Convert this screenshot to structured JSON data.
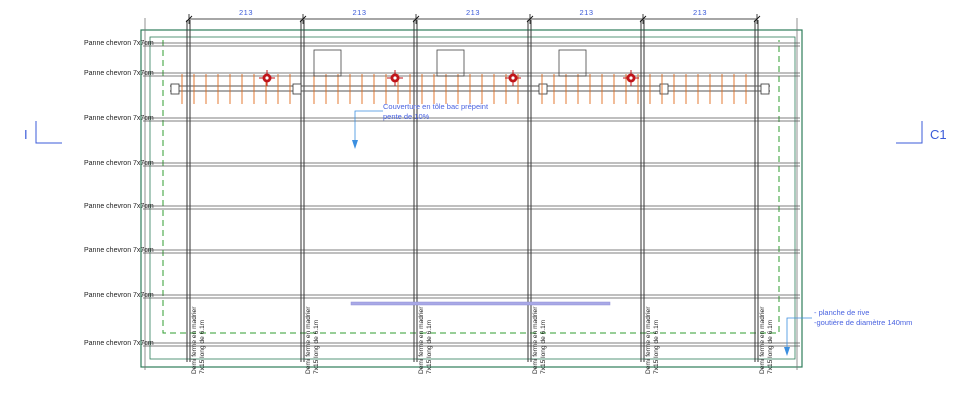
{
  "purlin_labels": [
    "Panne chevron 7x7cm",
    "Panne chevron 7x7cm",
    "Panne chevron 7x7cm",
    "Panne chevron 7x7cm",
    "Panne chevron 7x7cm",
    "Panne chevron 7x7cm",
    "Panne chevron 7x7cm",
    "Panne chevron 7x7cm"
  ],
  "truss_label": {
    "line1": "Demi ferme en madrier",
    "line2": "7x15 long de 6.1m"
  },
  "dimensions": [
    "213",
    "213",
    "213",
    "213",
    "213"
  ],
  "roof_note": {
    "line1": "Couverture en tôle bac prépeint",
    "line2": "pente de 10%"
  },
  "edge_note": {
    "line1": "- planche de rive",
    "line2": "-goutière de diamètre 140mm"
  },
  "section_marks": {
    "left": "I",
    "right": "C1"
  },
  "colors": {
    "frame": "#2e7d5a",
    "beam": "#555555",
    "dashed": "#2f9e2f",
    "annotation": "#3b5bd9",
    "rafter": "#e06b1c",
    "valve": "#c0141a",
    "gutter": "#8f8fd8"
  }
}
